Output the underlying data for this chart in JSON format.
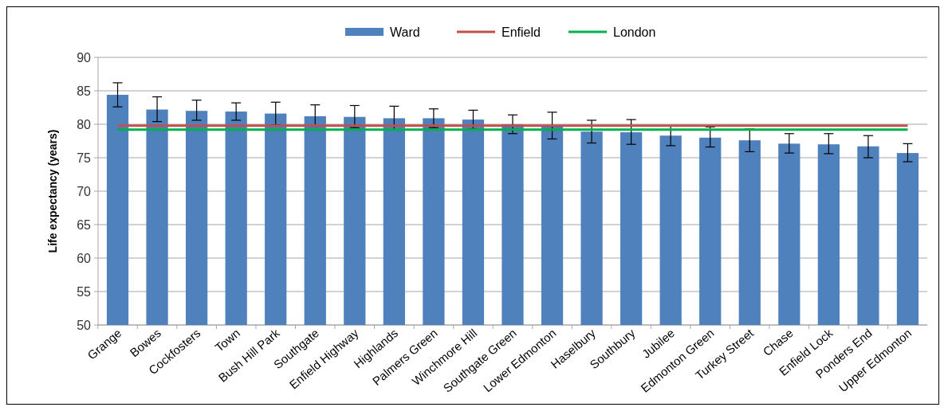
{
  "chart_data": {
    "type": "bar",
    "ylabel": "Life expectancy (years)",
    "categories": [
      "Grange",
      "Bowes",
      "Cockfosters",
      "Town",
      "Bush Hill Park",
      "Southgate",
      "Enfield Highway",
      "Highlands",
      "Palmers Green",
      "Winchmore Hill",
      "Southgate Green",
      "Lower Edmonton",
      "Haselbury",
      "Southbury",
      "Jubilee",
      "Edmonton Green",
      "Turkey Street",
      "Chase",
      "Enfield Lock",
      "Ponders End",
      "Upper Edmonton"
    ],
    "series": [
      {
        "name": "Ward",
        "color": "#4f81bd",
        "values": [
          84.4,
          82.2,
          82.0,
          81.9,
          81.6,
          81.2,
          81.1,
          80.9,
          80.9,
          80.7,
          80.0,
          79.8,
          78.9,
          78.8,
          78.3,
          78.0,
          77.6,
          77.1,
          77.0,
          76.7,
          75.7
        ],
        "errors": [
          [
            82.6,
            86.2
          ],
          [
            80.4,
            84.1
          ],
          [
            80.6,
            83.6
          ],
          [
            80.6,
            83.2
          ],
          [
            79.9,
            83.3
          ],
          [
            79.7,
            82.9
          ],
          [
            79.5,
            82.8
          ],
          [
            79.2,
            82.7
          ],
          [
            79.5,
            82.3
          ],
          [
            79.3,
            82.1
          ],
          [
            78.6,
            81.4
          ],
          [
            77.8,
            81.8
          ],
          [
            77.2,
            80.6
          ],
          [
            77.0,
            80.7
          ],
          [
            76.8,
            79.8
          ],
          [
            76.6,
            79.6
          ],
          [
            75.9,
            79.3
          ],
          [
            75.7,
            78.6
          ],
          [
            75.6,
            78.6
          ],
          [
            75.0,
            78.3
          ],
          [
            74.4,
            77.1
          ]
        ]
      },
      {
        "name": "Enfield",
        "type": "line",
        "color": "#c0504d",
        "values": [
          79.8,
          79.8,
          79.8,
          79.8,
          79.8,
          79.8,
          79.8,
          79.8,
          79.8,
          79.8,
          79.8,
          79.8,
          79.8,
          79.8,
          79.8,
          79.8,
          79.8,
          79.8,
          79.8,
          79.8,
          79.8
        ]
      },
      {
        "name": "London",
        "type": "line",
        "color": "#00b050",
        "values": [
          79.2,
          79.2,
          79.2,
          79.2,
          79.2,
          79.2,
          79.2,
          79.2,
          79.2,
          79.2,
          79.2,
          79.2,
          79.2,
          79.2,
          79.2,
          79.2,
          79.2,
          79.2,
          79.2,
          79.2,
          79.2
        ]
      }
    ],
    "ylim": [
      50,
      90
    ],
    "yticks": [
      50,
      55,
      60,
      65,
      70,
      75,
      80,
      85,
      90
    ],
    "grid": "y",
    "legend": "top"
  }
}
